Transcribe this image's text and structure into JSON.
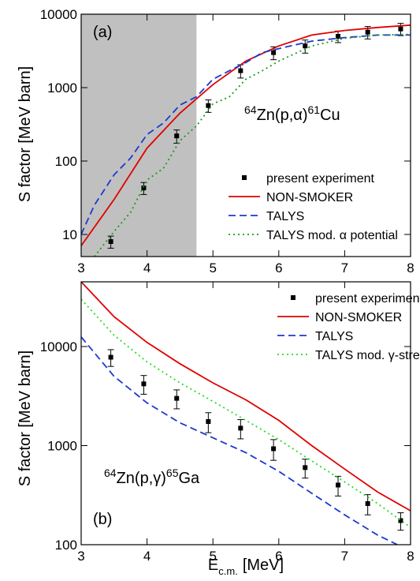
{
  "chart_data": [
    {
      "type": "line",
      "panel_label": "(a)",
      "y_label": "S factor [MeV barn]",
      "reaction": [
        {
          "text": "64",
          "sup": true
        },
        {
          "text": "Zn(p,α)"
        },
        {
          "text": "61",
          "sup": true
        },
        {
          "text": "Cu"
        }
      ],
      "xlim": [
        3,
        8
      ],
      "xticks": [
        3,
        4,
        5,
        6,
        7,
        8
      ],
      "ylim": [
        5,
        10000
      ],
      "yticks": [
        10,
        100,
        1000,
        10000
      ],
      "log_y": true,
      "shaded_x": [
        3,
        4.75
      ],
      "shade_color": "#c0c0c0",
      "legend": "lower right",
      "series": [
        {
          "name": "present experiment",
          "style": "points",
          "color": "#000000",
          "x": [
            3.45,
            3.95,
            4.45,
            4.93,
            5.42,
            5.92,
            6.4,
            6.9,
            7.35,
            7.85
          ],
          "values": [
            8,
            43,
            220,
            570,
            1700,
            3000,
            3700,
            5000,
            5700,
            6300
          ],
          "errors": [
            1.5,
            8,
            45,
            110,
            350,
            600,
            750,
            900,
            1100,
            1200
          ]
        },
        {
          "name": "NON-SMOKER",
          "style": "solid",
          "color": "#e00000",
          "x": [
            3,
            3.5,
            4,
            4.5,
            5,
            5.5,
            6,
            6.5,
            7,
            7.5,
            8
          ],
          "values": [
            7,
            30,
            150,
            450,
            1100,
            2300,
            3700,
            5200,
            6000,
            6600,
            7100
          ]
        },
        {
          "name": "TALYS",
          "style": "dashed",
          "color": "#1a3ad0",
          "x": [
            3,
            3.2,
            3.5,
            3.75,
            4,
            4.25,
            4.5,
            4.75,
            5,
            5.25,
            5.5,
            5.75,
            6,
            6.5,
            7,
            7.5,
            8
          ],
          "values": [
            10,
            25,
            65,
            110,
            230,
            330,
            580,
            750,
            1300,
            1700,
            2200,
            3000,
            3400,
            4300,
            4800,
            5200,
            5200
          ]
        },
        {
          "name": "TALYS mod. α potential",
          "style": "dotted",
          "color": "#1a9a1a",
          "x": [
            3.2,
            3.5,
            3.75,
            4,
            4.25,
            4.5,
            4.75,
            5,
            5.25,
            5.5,
            5.75,
            6,
            6.5,
            7,
            7.5,
            8
          ],
          "values": [
            5,
            11,
            20,
            55,
            80,
            190,
            300,
            600,
            750,
            1300,
            1700,
            2300,
            3700,
            4700,
            5200,
            5300
          ]
        }
      ]
    },
    {
      "type": "line",
      "panel_label": "(b)",
      "y_label": "S factor [MeV barn]",
      "x_label": [
        {
          "text": "E"
        },
        {
          "text": "c.m.",
          "sub": true
        },
        {
          "text": "[MeV]"
        }
      ],
      "reaction": [
        {
          "text": "64",
          "sup": true
        },
        {
          "text": "Zn(p,γ)"
        },
        {
          "text": "65",
          "sup": true
        },
        {
          "text": "Ga"
        }
      ],
      "xlim": [
        3,
        8
      ],
      "xticks": [
        3,
        4,
        5,
        6,
        7,
        8
      ],
      "ylim": [
        100,
        45000
      ],
      "yticks": [
        100,
        1000,
        10000
      ],
      "log_y": true,
      "legend": "upper right",
      "series": [
        {
          "name": "present experiment",
          "style": "points",
          "color": "#000000",
          "x": [
            3.45,
            3.95,
            4.45,
            4.93,
            5.42,
            5.92,
            6.4,
            6.9,
            7.35,
            7.85
          ],
          "values": [
            7800,
            4200,
            3000,
            1750,
            1500,
            930,
            600,
            400,
            260,
            175
          ],
          "errors": [
            1500,
            900,
            650,
            400,
            330,
            220,
            130,
            90,
            60,
            35
          ]
        },
        {
          "name": "NON-SMOKER",
          "style": "solid",
          "color": "#e00000",
          "x": [
            3,
            3.5,
            4,
            4.5,
            5,
            5.5,
            6,
            6.5,
            7,
            7.5,
            8
          ],
          "values": [
            45000,
            20000,
            11000,
            6700,
            4300,
            2900,
            1800,
            1000,
            580,
            340,
            220
          ]
        },
        {
          "name": "TALYS",
          "style": "dashed",
          "color": "#1a3ad0",
          "x": [
            3,
            3.5,
            4,
            4.5,
            5,
            5.5,
            6,
            6.5,
            7,
            7.5,
            7.8
          ],
          "values": [
            12500,
            5000,
            2700,
            1700,
            1200,
            850,
            550,
            330,
            200,
            125,
            100
          ]
        },
        {
          "name": "TALYS mod. γ-strength",
          "style": "dotted",
          "color": "#22dd22",
          "x": [
            3,
            3.5,
            4,
            4.5,
            5,
            5.5,
            6,
            6.5,
            7,
            7.5,
            8
          ],
          "values": [
            30000,
            13000,
            7000,
            4300,
            2800,
            1800,
            1150,
            700,
            430,
            260,
            150
          ]
        }
      ]
    }
  ]
}
